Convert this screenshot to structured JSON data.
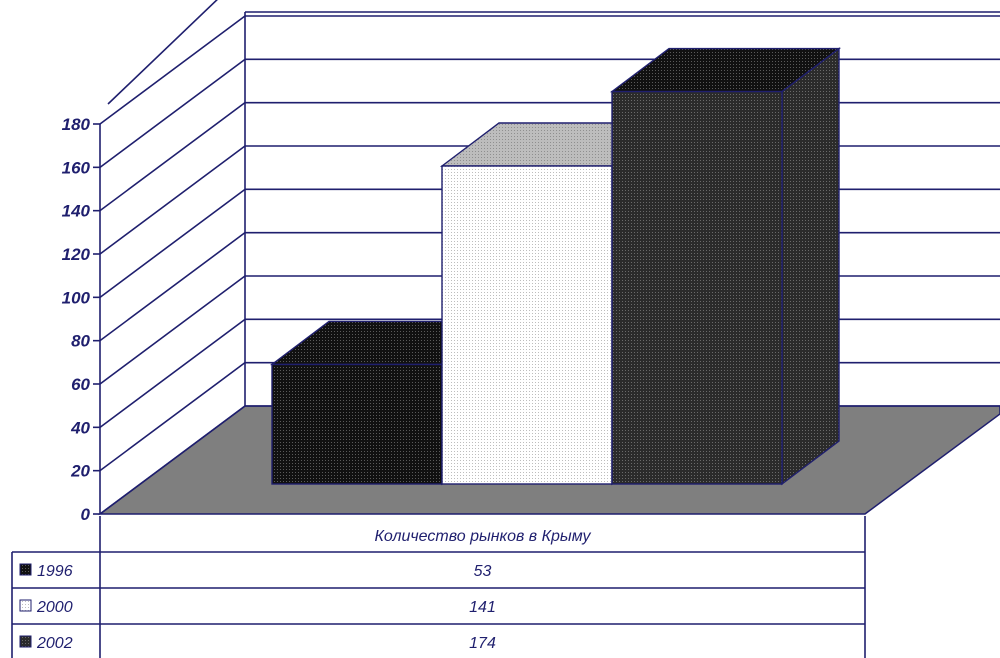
{
  "chart_data": {
    "type": "bar",
    "category": "Количество рынков в Крыму",
    "ylim": [
      0,
      180
    ],
    "yticks": [
      0,
      20,
      40,
      60,
      80,
      100,
      120,
      140,
      160,
      180
    ],
    "grid": true,
    "legend_placement": "data-table-left",
    "series": [
      {
        "name": "1996",
        "value": 53,
        "color": "#111111"
      },
      {
        "name": "2000",
        "value": 141,
        "color": "#f4f4f4"
      },
      {
        "name": "2002",
        "value": 174,
        "color": "#2a2a2a"
      }
    ]
  },
  "colors": {
    "line": "#1f1f6e",
    "floor": "#7f7f7f",
    "top_light": "#bdbdbd"
  }
}
